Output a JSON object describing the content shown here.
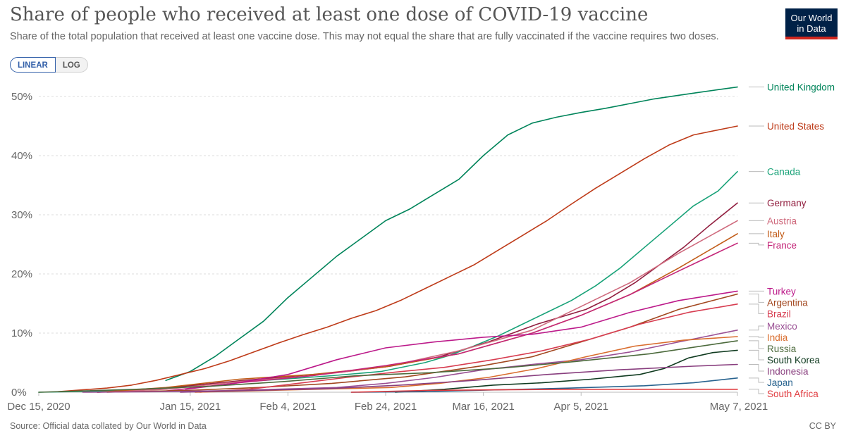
{
  "header": {
    "title": "Share of people who received at least one dose of COVID-19 vaccine",
    "subtitle": "Share of the total population that received at least one vaccine dose. This may not equal the share that are fully vaccinated if the vaccine requires two doses."
  },
  "logo": {
    "line1": "Our World",
    "line2": "in Data",
    "bg_color": "#002147",
    "accent_color": "#ce261e"
  },
  "scale_toggle": {
    "linear_label": "LINEAR",
    "log_label": "LOG",
    "selected": "LINEAR"
  },
  "footer": {
    "source": "Source: Official data collated by Our World in Data",
    "license": "CC BY"
  },
  "chart_data": {
    "type": "line",
    "title": "Share of people who received at least one dose of COVID-19 vaccine",
    "ylim": [
      0,
      50
    ],
    "y_ticks": [
      0,
      10,
      20,
      30,
      40,
      50
    ],
    "y_tick_labels": [
      "0%",
      "10%",
      "20%",
      "30%",
      "40%",
      "50%"
    ],
    "x_range": [
      "2020-12-15",
      "2021-05-07"
    ],
    "x_ticks": [
      "2020-12-15",
      "2021-01-15",
      "2021-02-04",
      "2021-02-24",
      "2021-03-16",
      "2021-04-05",
      "2021-05-07"
    ],
    "x_tick_labels": [
      "Dec 15, 2020",
      "Jan 15, 2021",
      "Feb 4, 2021",
      "Feb 24, 2021",
      "Mar 16, 2021",
      "Apr 5, 2021",
      "May 7, 2021"
    ],
    "grid": "horizontal dashed",
    "legend": "right, labels at line ends",
    "series": [
      {
        "name": "United Kingdom",
        "color": "#00845a",
        "points": [
          [
            "2021-01-10",
            2.0
          ],
          [
            "2021-01-15",
            3.5
          ],
          [
            "2021-01-20",
            6.0
          ],
          [
            "2021-01-25",
            9.0
          ],
          [
            "2021-01-30",
            12.0
          ],
          [
            "2021-02-04",
            16.0
          ],
          [
            "2021-02-09",
            19.5
          ],
          [
            "2021-02-14",
            23.0
          ],
          [
            "2021-02-19",
            26.0
          ],
          [
            "2021-02-24",
            29.0
          ],
          [
            "2021-03-01",
            31.0
          ],
          [
            "2021-03-06",
            33.5
          ],
          [
            "2021-03-11",
            36.0
          ],
          [
            "2021-03-16",
            40.0
          ],
          [
            "2021-03-21",
            43.5
          ],
          [
            "2021-03-26",
            45.5
          ],
          [
            "2021-03-31",
            46.5
          ],
          [
            "2021-04-05",
            47.3
          ],
          [
            "2021-04-10",
            48.0
          ],
          [
            "2021-04-15",
            48.8
          ],
          [
            "2021-04-20",
            49.6
          ],
          [
            "2021-04-25",
            50.2
          ],
          [
            "2021-04-30",
            50.8
          ],
          [
            "2021-05-07",
            51.6
          ]
        ]
      },
      {
        "name": "United States",
        "color": "#be3b19",
        "points": [
          [
            "2020-12-19",
            0.1
          ],
          [
            "2020-12-24",
            0.4
          ],
          [
            "2020-12-29",
            0.7
          ],
          [
            "2021-01-03",
            1.2
          ],
          [
            "2021-01-08",
            2.0
          ],
          [
            "2021-01-13",
            3.0
          ],
          [
            "2021-01-18",
            4.0
          ],
          [
            "2021-01-23",
            5.3
          ],
          [
            "2021-01-28",
            6.8
          ],
          [
            "2021-02-02",
            8.3
          ],
          [
            "2021-02-07",
            9.7
          ],
          [
            "2021-02-12",
            11.0
          ],
          [
            "2021-02-17",
            12.5
          ],
          [
            "2021-02-22",
            13.8
          ],
          [
            "2021-02-27",
            15.5
          ],
          [
            "2021-03-04",
            17.5
          ],
          [
            "2021-03-09",
            19.5
          ],
          [
            "2021-03-14",
            21.5
          ],
          [
            "2021-03-19",
            24.0
          ],
          [
            "2021-03-24",
            26.5
          ],
          [
            "2021-03-29",
            29.0
          ],
          [
            "2021-04-03",
            31.8
          ],
          [
            "2021-04-08",
            34.5
          ],
          [
            "2021-04-13",
            37.0
          ],
          [
            "2021-04-18",
            39.5
          ],
          [
            "2021-04-23",
            41.8
          ],
          [
            "2021-04-28",
            43.5
          ],
          [
            "2021-05-07",
            45.0
          ]
        ]
      },
      {
        "name": "Canada",
        "color": "#18a278",
        "points": [
          [
            "2020-12-15",
            0.0
          ],
          [
            "2021-01-04",
            0.3
          ],
          [
            "2021-01-14",
            1.0
          ],
          [
            "2021-01-24",
            1.7
          ],
          [
            "2021-02-03",
            2.2
          ],
          [
            "2021-02-13",
            2.8
          ],
          [
            "2021-02-23",
            3.5
          ],
          [
            "2021-03-04",
            5.0
          ],
          [
            "2021-03-09",
            6.2
          ],
          [
            "2021-03-14",
            7.8
          ],
          [
            "2021-03-19",
            9.5
          ],
          [
            "2021-03-24",
            11.5
          ],
          [
            "2021-03-29",
            13.5
          ],
          [
            "2021-04-03",
            15.5
          ],
          [
            "2021-04-08",
            18.0
          ],
          [
            "2021-04-13",
            21.0
          ],
          [
            "2021-04-18",
            24.5
          ],
          [
            "2021-04-23",
            28.0
          ],
          [
            "2021-04-28",
            31.5
          ],
          [
            "2021-05-03",
            34.0
          ],
          [
            "2021-05-07",
            37.3
          ]
        ]
      },
      {
        "name": "Germany",
        "color": "#911e3f",
        "points": [
          [
            "2020-12-27",
            0.0
          ],
          [
            "2021-01-06",
            0.4
          ],
          [
            "2021-01-16",
            1.2
          ],
          [
            "2021-01-26",
            2.0
          ],
          [
            "2021-02-05",
            2.7
          ],
          [
            "2021-02-15",
            3.4
          ],
          [
            "2021-02-25",
            4.4
          ],
          [
            "2021-03-07",
            6.0
          ],
          [
            "2021-03-17",
            8.5
          ],
          [
            "2021-03-27",
            11.5
          ],
          [
            "2021-04-06",
            14.0
          ],
          [
            "2021-04-11",
            16.0
          ],
          [
            "2021-04-16",
            18.5
          ],
          [
            "2021-04-21",
            21.5
          ],
          [
            "2021-04-26",
            24.5
          ],
          [
            "2021-05-01",
            28.0
          ],
          [
            "2021-05-07",
            32.0
          ]
        ]
      },
      {
        "name": "Austria",
        "color": "#cf6a7d",
        "points": [
          [
            "2020-12-27",
            0.0
          ],
          [
            "2021-01-10",
            0.5
          ],
          [
            "2021-01-25",
            1.8
          ],
          [
            "2021-02-09",
            2.8
          ],
          [
            "2021-02-24",
            4.3
          ],
          [
            "2021-03-11",
            7.0
          ],
          [
            "2021-03-26",
            10.5
          ],
          [
            "2021-04-05",
            14.5
          ],
          [
            "2021-04-15",
            18.5
          ],
          [
            "2021-04-25",
            23.5
          ],
          [
            "2021-05-07",
            29.0
          ]
        ]
      },
      {
        "name": "Italy",
        "color": "#c15b17",
        "points": [
          [
            "2020-12-27",
            0.0
          ],
          [
            "2021-01-10",
            0.8
          ],
          [
            "2021-01-25",
            2.2
          ],
          [
            "2021-02-09",
            3.0
          ],
          [
            "2021-02-24",
            4.3
          ],
          [
            "2021-03-11",
            6.5
          ],
          [
            "2021-03-26",
            10.0
          ],
          [
            "2021-04-05",
            13.0
          ],
          [
            "2021-04-15",
            16.5
          ],
          [
            "2021-04-25",
            21.0
          ],
          [
            "2021-05-07",
            26.8
          ]
        ]
      },
      {
        "name": "France",
        "color": "#c42679",
        "points": [
          [
            "2020-12-27",
            0.0
          ],
          [
            "2021-01-10",
            0.2
          ],
          [
            "2021-01-25",
            1.6
          ],
          [
            "2021-02-09",
            2.8
          ],
          [
            "2021-02-24",
            4.5
          ],
          [
            "2021-03-11",
            6.5
          ],
          [
            "2021-03-26",
            10.0
          ],
          [
            "2021-04-05",
            13.0
          ],
          [
            "2021-04-15",
            16.5
          ],
          [
            "2021-04-25",
            20.5
          ],
          [
            "2021-05-07",
            25.2
          ]
        ]
      },
      {
        "name": "Turkey",
        "color": "#bc1a8a",
        "points": [
          [
            "2021-01-14",
            0.5
          ],
          [
            "2021-01-24",
            1.5
          ],
          [
            "2021-02-04",
            3.0
          ],
          [
            "2021-02-14",
            5.5
          ],
          [
            "2021-02-19",
            6.5
          ],
          [
            "2021-02-24",
            7.5
          ],
          [
            "2021-03-06",
            8.5
          ],
          [
            "2021-03-16",
            9.3
          ],
          [
            "2021-03-26",
            9.8
          ],
          [
            "2021-04-05",
            11.0
          ],
          [
            "2021-04-15",
            13.5
          ],
          [
            "2021-04-25",
            15.5
          ],
          [
            "2021-05-07",
            17.1
          ]
        ]
      },
      {
        "name": "Argentina",
        "color": "#a2471f",
        "points": [
          [
            "2020-12-29",
            0.0
          ],
          [
            "2021-01-14",
            0.3
          ],
          [
            "2021-01-29",
            0.8
          ],
          [
            "2021-02-13",
            1.5
          ],
          [
            "2021-02-28",
            2.6
          ],
          [
            "2021-03-16",
            4.5
          ],
          [
            "2021-03-26",
            6.0
          ],
          [
            "2021-04-05",
            8.5
          ],
          [
            "2021-04-15",
            11.0
          ],
          [
            "2021-04-25",
            14.0
          ],
          [
            "2021-05-07",
            16.6
          ]
        ]
      },
      {
        "name": "Brazil",
        "color": "#d73c50",
        "points": [
          [
            "2021-01-17",
            0.0
          ],
          [
            "2021-01-27",
            0.5
          ],
          [
            "2021-02-06",
            1.5
          ],
          [
            "2021-02-16",
            2.5
          ],
          [
            "2021-02-26",
            3.4
          ],
          [
            "2021-03-08",
            4.2
          ],
          [
            "2021-03-18",
            5.5
          ],
          [
            "2021-03-28",
            7.0
          ],
          [
            "2021-04-07",
            9.0
          ],
          [
            "2021-04-17",
            11.5
          ],
          [
            "2021-04-27",
            13.5
          ],
          [
            "2021-05-07",
            14.9
          ]
        ]
      },
      {
        "name": "Mexico",
        "color": "#9a5094",
        "points": [
          [
            "2020-12-24",
            0.0
          ],
          [
            "2021-01-09",
            0.1
          ],
          [
            "2021-01-24",
            0.3
          ],
          [
            "2021-02-14",
            0.8
          ],
          [
            "2021-02-24",
            1.5
          ],
          [
            "2021-03-06",
            2.5
          ],
          [
            "2021-03-16",
            3.8
          ],
          [
            "2021-03-26",
            4.7
          ],
          [
            "2021-04-05",
            5.5
          ],
          [
            "2021-04-15",
            6.8
          ],
          [
            "2021-04-25",
            8.5
          ],
          [
            "2021-05-07",
            10.5
          ]
        ]
      },
      {
        "name": "India",
        "color": "#d96d2e",
        "points": [
          [
            "2021-01-16",
            0.0
          ],
          [
            "2021-01-26",
            0.2
          ],
          [
            "2021-02-05",
            0.4
          ],
          [
            "2021-02-15",
            0.6
          ],
          [
            "2021-02-25",
            0.8
          ],
          [
            "2021-03-07",
            1.5
          ],
          [
            "2021-03-17",
            2.5
          ],
          [
            "2021-03-27",
            4.0
          ],
          [
            "2021-04-06",
            6.0
          ],
          [
            "2021-04-16",
            7.8
          ],
          [
            "2021-04-26",
            8.8
          ],
          [
            "2021-05-07",
            9.4
          ]
        ]
      },
      {
        "name": "Russia",
        "color": "#4c6a3c",
        "points": [
          [
            "2020-12-15",
            0.0
          ],
          [
            "2021-01-04",
            0.5
          ],
          [
            "2021-01-19",
            1.0
          ],
          [
            "2021-02-03",
            1.8
          ],
          [
            "2021-02-18",
            2.8
          ],
          [
            "2021-03-05",
            3.3
          ],
          [
            "2021-03-20",
            4.1
          ],
          [
            "2021-04-04",
            5.2
          ],
          [
            "2021-04-19",
            6.5
          ],
          [
            "2021-05-07",
            8.7
          ]
        ]
      },
      {
        "name": "South Korea",
        "color": "#0f3a1f",
        "points": [
          [
            "2021-02-26",
            0.0
          ],
          [
            "2021-03-08",
            0.5
          ],
          [
            "2021-03-18",
            1.2
          ],
          [
            "2021-03-28",
            1.6
          ],
          [
            "2021-04-07",
            2.2
          ],
          [
            "2021-04-17",
            3.0
          ],
          [
            "2021-04-22",
            4.0
          ],
          [
            "2021-04-27",
            5.8
          ],
          [
            "2021-05-02",
            6.7
          ],
          [
            "2021-05-07",
            7.1
          ]
        ]
      },
      {
        "name": "Indonesia",
        "color": "#883e7e",
        "points": [
          [
            "2021-01-13",
            0.0
          ],
          [
            "2021-01-28",
            0.3
          ],
          [
            "2021-02-12",
            0.6
          ],
          [
            "2021-02-27",
            1.2
          ],
          [
            "2021-03-14",
            2.0
          ],
          [
            "2021-03-29",
            3.0
          ],
          [
            "2021-04-13",
            3.8
          ],
          [
            "2021-04-28",
            4.4
          ],
          [
            "2021-05-07",
            4.7
          ]
        ]
      },
      {
        "name": "Japan",
        "color": "#28638f",
        "points": [
          [
            "2021-02-17",
            0.0
          ],
          [
            "2021-03-04",
            0.1
          ],
          [
            "2021-03-19",
            0.4
          ],
          [
            "2021-04-03",
            0.7
          ],
          [
            "2021-04-18",
            1.1
          ],
          [
            "2021-04-28",
            1.6
          ],
          [
            "2021-05-07",
            2.4
          ]
        ]
      },
      {
        "name": "South Africa",
        "color": "#e03a3e",
        "points": [
          [
            "2021-02-17",
            0.0
          ],
          [
            "2021-03-04",
            0.3
          ],
          [
            "2021-03-19",
            0.4
          ],
          [
            "2021-04-03",
            0.5
          ],
          [
            "2021-04-18",
            0.5
          ],
          [
            "2021-05-07",
            0.5
          ]
        ]
      }
    ]
  }
}
